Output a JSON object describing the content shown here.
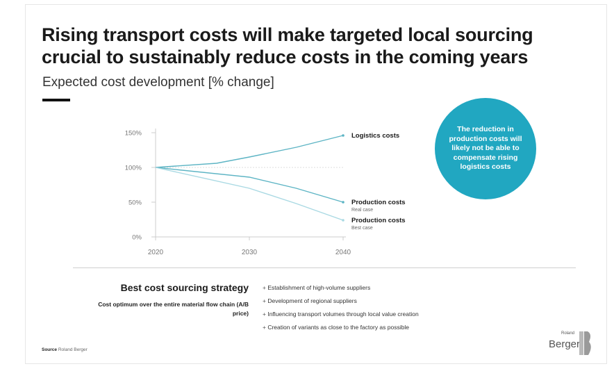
{
  "title": "Rising transport costs will make targeted local sourcing crucial to sustainably reduce costs in the coming years",
  "subtitle": "Expected cost development [% change]",
  "callout": "The reduction in production costs will likely not be able to compensate rising logistics costs",
  "chart_data": {
    "type": "line",
    "title": "",
    "xlabel": "",
    "ylabel": "",
    "x_ticks": [
      "2020",
      "2030",
      "2040"
    ],
    "y_ticks": [
      "0%",
      "50%",
      "100%",
      "150%"
    ],
    "xlim": [
      2020,
      2040
    ],
    "ylim": [
      0,
      150
    ],
    "grid": false,
    "series": [
      {
        "name": "Logistics costs",
        "sublabel": "",
        "color": "#5cb4c4",
        "points": [
          [
            2020,
            100
          ],
          [
            2026.5,
            106
          ],
          [
            2030,
            115
          ],
          [
            2035,
            129
          ],
          [
            2040,
            146
          ]
        ]
      },
      {
        "name": "Production costs",
        "sublabel": "Real case",
        "color": "#5cb4c4",
        "points": [
          [
            2020,
            100
          ],
          [
            2030,
            86
          ],
          [
            2035,
            70
          ],
          [
            2040,
            50
          ]
        ]
      },
      {
        "name": "Production costs",
        "sublabel": "Best case",
        "color": "#a9d9e3",
        "points": [
          [
            2020,
            100
          ],
          [
            2030,
            70
          ],
          [
            2035,
            48
          ],
          [
            2040,
            24
          ]
        ]
      }
    ],
    "reference_line": {
      "y": 100,
      "style": "dotted"
    }
  },
  "strategy": {
    "title": "Best cost sourcing strategy",
    "subtitle": "Cost optimum over the entire material flow chain (A/B price)",
    "bullets": [
      "Establishment of high-volume suppliers",
      "Development of regional suppliers",
      "Influencing transport volumes through local value creation",
      "Creation of variants as close to the factory as possible"
    ]
  },
  "source": {
    "label": "Source",
    "text": "Roland Berger"
  },
  "logo": {
    "top": "Roland",
    "word": "Berger"
  },
  "colors": {
    "accent": "#21a7c1",
    "line": "#5cb4c4",
    "line_light": "#a9d9e3"
  }
}
